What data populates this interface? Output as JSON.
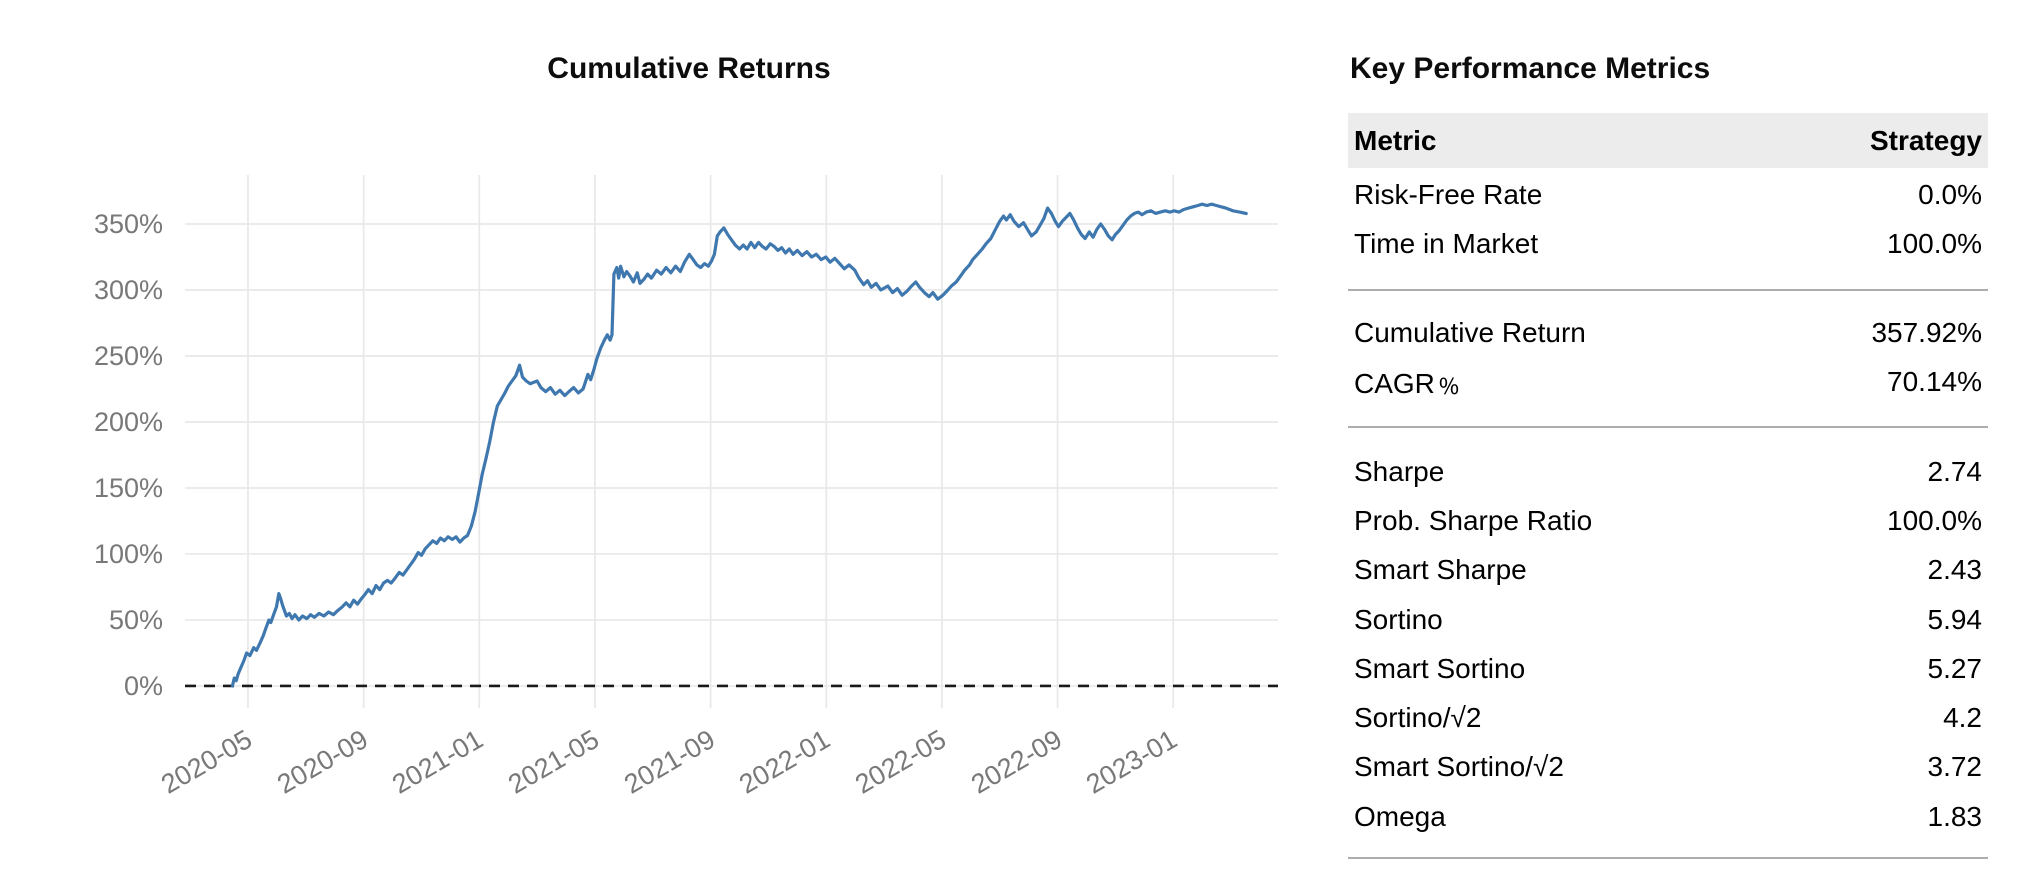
{
  "chart": {
    "title": "Cumulative Returns"
  },
  "chart_data": {
    "type": "line",
    "title": "Cumulative Returns",
    "x_tick_labels": [
      "2020-05",
      "2020-09",
      "2021-01",
      "2021-05",
      "2021-09",
      "2022-01",
      "2022-05",
      "2022-09",
      "2023-01"
    ],
    "y_tick_labels": [
      "0%",
      "50%",
      "100%",
      "150%",
      "200%",
      "250%",
      "300%",
      "350%"
    ],
    "y_ticks_pct": [
      0,
      50,
      100,
      150,
      200,
      250,
      300,
      350
    ],
    "x_domain": [
      "2020-02-26",
      "2023-04-20"
    ],
    "y_domain_pct": [
      -16.7,
      387.1
    ],
    "grid": true,
    "legend": "none",
    "zero_line_pct": 0,
    "series": [
      {
        "name": "Strategy",
        "color": "#3f77af",
        "points": [
          [
            "2020-04-15",
            0
          ],
          [
            "2020-04-17",
            6
          ],
          [
            "2020-04-19",
            4
          ],
          [
            "2020-04-21",
            9
          ],
          [
            "2020-04-24",
            14
          ],
          [
            "2020-04-27",
            19
          ],
          [
            "2020-04-30",
            25
          ],
          [
            "2020-05-03",
            23
          ],
          [
            "2020-05-07",
            29
          ],
          [
            "2020-05-10",
            27
          ],
          [
            "2020-05-14",
            33
          ],
          [
            "2020-05-17",
            38
          ],
          [
            "2020-05-20",
            44
          ],
          [
            "2020-05-23",
            50
          ],
          [
            "2020-05-25",
            48
          ],
          [
            "2020-05-28",
            54
          ],
          [
            "2020-05-31",
            60
          ],
          [
            "2020-06-03",
            70
          ],
          [
            "2020-06-05",
            66
          ],
          [
            "2020-06-07",
            61
          ],
          [
            "2020-06-09",
            57
          ],
          [
            "2020-06-11",
            53
          ],
          [
            "2020-06-14",
            55
          ],
          [
            "2020-06-17",
            51
          ],
          [
            "2020-06-20",
            54
          ],
          [
            "2020-06-24",
            50
          ],
          [
            "2020-06-28",
            53
          ],
          [
            "2020-07-02",
            51
          ],
          [
            "2020-07-06",
            54
          ],
          [
            "2020-07-10",
            52
          ],
          [
            "2020-07-15",
            55
          ],
          [
            "2020-07-20",
            53
          ],
          [
            "2020-07-25",
            56
          ],
          [
            "2020-07-30",
            54
          ],
          [
            "2020-08-04",
            57
          ],
          [
            "2020-08-09",
            60
          ],
          [
            "2020-08-13",
            63
          ],
          [
            "2020-08-17",
            60
          ],
          [
            "2020-08-21",
            65
          ],
          [
            "2020-08-25",
            62
          ],
          [
            "2020-08-29",
            66
          ],
          [
            "2020-09-02",
            69
          ],
          [
            "2020-09-06",
            73
          ],
          [
            "2020-09-10",
            70
          ],
          [
            "2020-09-14",
            76
          ],
          [
            "2020-09-18",
            73
          ],
          [
            "2020-09-22",
            78
          ],
          [
            "2020-09-26",
            80
          ],
          [
            "2020-09-30",
            78
          ],
          [
            "2020-10-04",
            82
          ],
          [
            "2020-10-08",
            86
          ],
          [
            "2020-10-12",
            84
          ],
          [
            "2020-10-16",
            88
          ],
          [
            "2020-10-20",
            92
          ],
          [
            "2020-10-24",
            96
          ],
          [
            "2020-10-28",
            101
          ],
          [
            "2020-11-01",
            99
          ],
          [
            "2020-11-05",
            104
          ],
          [
            "2020-11-09",
            107
          ],
          [
            "2020-11-13",
            110
          ],
          [
            "2020-11-17",
            108
          ],
          [
            "2020-11-21",
            112
          ],
          [
            "2020-11-25",
            110
          ],
          [
            "2020-11-29",
            113
          ],
          [
            "2020-12-03",
            111
          ],
          [
            "2020-12-07",
            113
          ],
          [
            "2020-12-11",
            109
          ],
          [
            "2020-12-15",
            112
          ],
          [
            "2020-12-19",
            114
          ],
          [
            "2020-12-23",
            121
          ],
          [
            "2020-12-27",
            132
          ],
          [
            "2020-12-31",
            147
          ],
          [
            "2021-01-04",
            160
          ],
          [
            "2021-01-08",
            172
          ],
          [
            "2021-01-12",
            185
          ],
          [
            "2021-01-16",
            200
          ],
          [
            "2021-01-20",
            212
          ],
          [
            "2021-01-24",
            217
          ],
          [
            "2021-01-28",
            222
          ],
          [
            "2021-02-01",
            227
          ],
          [
            "2021-02-05",
            231
          ],
          [
            "2021-02-09",
            235
          ],
          [
            "2021-02-13",
            243
          ],
          [
            "2021-02-16",
            234
          ],
          [
            "2021-02-20",
            231
          ],
          [
            "2021-02-24",
            229
          ],
          [
            "2021-03-01",
            231
          ],
          [
            "2021-03-05",
            226
          ],
          [
            "2021-03-10",
            223
          ],
          [
            "2021-03-15",
            226
          ],
          [
            "2021-03-20",
            221
          ],
          [
            "2021-03-25",
            224
          ],
          [
            "2021-03-30",
            220
          ],
          [
            "2021-04-04",
            223
          ],
          [
            "2021-04-09",
            226
          ],
          [
            "2021-04-14",
            222
          ],
          [
            "2021-04-19",
            225
          ],
          [
            "2021-04-24",
            236
          ],
          [
            "2021-04-27",
            232
          ],
          [
            "2021-04-30",
            239
          ],
          [
            "2021-05-03",
            248
          ],
          [
            "2021-05-07",
            256
          ],
          [
            "2021-05-11",
            262
          ],
          [
            "2021-05-14",
            266
          ],
          [
            "2021-05-17",
            262
          ],
          [
            "2021-05-19",
            266
          ],
          [
            "2021-05-21",
            312
          ],
          [
            "2021-05-24",
            317
          ],
          [
            "2021-05-26",
            309
          ],
          [
            "2021-05-28",
            318
          ],
          [
            "2021-06-01",
            310
          ],
          [
            "2021-06-04",
            314
          ],
          [
            "2021-06-08",
            310
          ],
          [
            "2021-06-11",
            306
          ],
          [
            "2021-06-15",
            313
          ],
          [
            "2021-06-18",
            305
          ],
          [
            "2021-06-22",
            308
          ],
          [
            "2021-06-26",
            312
          ],
          [
            "2021-06-30",
            309
          ],
          [
            "2021-07-05",
            315
          ],
          [
            "2021-07-10",
            312
          ],
          [
            "2021-07-15",
            317
          ],
          [
            "2021-07-20",
            313
          ],
          [
            "2021-07-25",
            318
          ],
          [
            "2021-07-30",
            314
          ],
          [
            "2021-08-04",
            321
          ],
          [
            "2021-08-09",
            327
          ],
          [
            "2021-08-13",
            323
          ],
          [
            "2021-08-17",
            319
          ],
          [
            "2021-08-21",
            317
          ],
          [
            "2021-08-25",
            320
          ],
          [
            "2021-08-29",
            318
          ],
          [
            "2021-09-02",
            322
          ],
          [
            "2021-09-05",
            327
          ],
          [
            "2021-09-08",
            341
          ],
          [
            "2021-09-11",
            344
          ],
          [
            "2021-09-15",
            347
          ],
          [
            "2021-09-19",
            342
          ],
          [
            "2021-09-23",
            338
          ],
          [
            "2021-09-27",
            334
          ],
          [
            "2021-10-01",
            331
          ],
          [
            "2021-10-05",
            334
          ],
          [
            "2021-10-09",
            331
          ],
          [
            "2021-10-13",
            336
          ],
          [
            "2021-10-17",
            332
          ],
          [
            "2021-10-21",
            336
          ],
          [
            "2021-10-25",
            333
          ],
          [
            "2021-10-29",
            331
          ],
          [
            "2021-11-03",
            335
          ],
          [
            "2021-11-07",
            333
          ],
          [
            "2021-11-11",
            330
          ],
          [
            "2021-11-15",
            332
          ],
          [
            "2021-11-19",
            328
          ],
          [
            "2021-11-23",
            331
          ],
          [
            "2021-11-27",
            327
          ],
          [
            "2021-12-01",
            330
          ],
          [
            "2021-12-06",
            326
          ],
          [
            "2021-12-11",
            329
          ],
          [
            "2021-12-16",
            325
          ],
          [
            "2021-12-21",
            327
          ],
          [
            "2021-12-26",
            323
          ],
          [
            "2021-12-31",
            325
          ],
          [
            "2022-01-05",
            321
          ],
          [
            "2022-01-10",
            324
          ],
          [
            "2022-01-15",
            320
          ],
          [
            "2022-01-20",
            316
          ],
          [
            "2022-01-25",
            319
          ],
          [
            "2022-01-31",
            315
          ],
          [
            "2022-02-05",
            309
          ],
          [
            "2022-02-10",
            304
          ],
          [
            "2022-02-14",
            307
          ],
          [
            "2022-02-18",
            302
          ],
          [
            "2022-02-23",
            305
          ],
          [
            "2022-02-28",
            300
          ],
          [
            "2022-03-05",
            303
          ],
          [
            "2022-03-10",
            298
          ],
          [
            "2022-03-15",
            301
          ],
          [
            "2022-03-20",
            296
          ],
          [
            "2022-03-25",
            299
          ],
          [
            "2022-03-30",
            303
          ],
          [
            "2022-04-04",
            306
          ],
          [
            "2022-04-08",
            302
          ],
          [
            "2022-04-13",
            298
          ],
          [
            "2022-04-18",
            295
          ],
          [
            "2022-04-22",
            298
          ],
          [
            "2022-04-27",
            293
          ],
          [
            "2022-05-02",
            296
          ],
          [
            "2022-05-06",
            299
          ],
          [
            "2022-05-11",
            303
          ],
          [
            "2022-05-16",
            306
          ],
          [
            "2022-05-20",
            310
          ],
          [
            "2022-05-25",
            315
          ],
          [
            "2022-05-30",
            319
          ],
          [
            "2022-06-03",
            323
          ],
          [
            "2022-06-08",
            327
          ],
          [
            "2022-06-13",
            331
          ],
          [
            "2022-06-17",
            335
          ],
          [
            "2022-06-22",
            339
          ],
          [
            "2022-06-27",
            346
          ],
          [
            "2022-07-01",
            352
          ],
          [
            "2022-07-05",
            356
          ],
          [
            "2022-07-08",
            353
          ],
          [
            "2022-07-12",
            357
          ],
          [
            "2022-07-16",
            352
          ],
          [
            "2022-07-21",
            348
          ],
          [
            "2022-07-26",
            351
          ],
          [
            "2022-07-31",
            345
          ],
          [
            "2022-08-04",
            341
          ],
          [
            "2022-08-09",
            344
          ],
          [
            "2022-08-13",
            349
          ],
          [
            "2022-08-17",
            354
          ],
          [
            "2022-08-21",
            362
          ],
          [
            "2022-08-25",
            358
          ],
          [
            "2022-08-29",
            352
          ],
          [
            "2022-09-02",
            348
          ],
          [
            "2022-09-06",
            352
          ],
          [
            "2022-09-10",
            355
          ],
          [
            "2022-09-14",
            358
          ],
          [
            "2022-09-18",
            353
          ],
          [
            "2022-09-22",
            347
          ],
          [
            "2022-09-26",
            342
          ],
          [
            "2022-09-30",
            339
          ],
          [
            "2022-10-04",
            344
          ],
          [
            "2022-10-08",
            340
          ],
          [
            "2022-10-12",
            346
          ],
          [
            "2022-10-16",
            350
          ],
          [
            "2022-10-20",
            346
          ],
          [
            "2022-10-24",
            341
          ],
          [
            "2022-10-28",
            338
          ],
          [
            "2022-11-01",
            342
          ],
          [
            "2022-11-05",
            345
          ],
          [
            "2022-11-09",
            349
          ],
          [
            "2022-11-13",
            353
          ],
          [
            "2022-11-17",
            356
          ],
          [
            "2022-11-21",
            358
          ],
          [
            "2022-11-25",
            359
          ],
          [
            "2022-11-29",
            357
          ],
          [
            "2022-12-03",
            359
          ],
          [
            "2022-12-08",
            360
          ],
          [
            "2022-12-13",
            358
          ],
          [
            "2022-12-18",
            359
          ],
          [
            "2022-12-23",
            360
          ],
          [
            "2022-12-28",
            359
          ],
          [
            "2023-01-02",
            360
          ],
          [
            "2023-01-07",
            359
          ],
          [
            "2023-01-12",
            361
          ],
          [
            "2023-01-17",
            362
          ],
          [
            "2023-01-22",
            363
          ],
          [
            "2023-01-27",
            364
          ],
          [
            "2023-02-01",
            365
          ],
          [
            "2023-02-06",
            364
          ],
          [
            "2023-02-11",
            365
          ],
          [
            "2023-02-16",
            364
          ],
          [
            "2023-02-21",
            363
          ],
          [
            "2023-02-26",
            362
          ],
          [
            "2023-03-03",
            360
          ],
          [
            "2023-03-10",
            359
          ],
          [
            "2023-03-17",
            357.92
          ]
        ]
      }
    ]
  },
  "metrics_panel": {
    "title": "Key Performance Metrics",
    "columns": [
      "Metric",
      "Strategy"
    ],
    "groups": [
      {
        "rows": [
          [
            "Risk-Free Rate",
            "0.0%"
          ],
          [
            "Time in Market",
            "100.0%"
          ]
        ]
      },
      {
        "rows": [
          [
            "Cumulative Return",
            "357.92%"
          ],
          [
            "CAGR﹪",
            "70.14%"
          ]
        ]
      },
      {
        "rows": [
          [
            "Sharpe",
            "2.74"
          ],
          [
            "Prob. Sharpe Ratio",
            "100.0%"
          ],
          [
            "Smart Sharpe",
            "2.43"
          ],
          [
            "Sortino",
            "5.94"
          ],
          [
            "Smart Sortino",
            "5.27"
          ],
          [
            "Sortino/√2",
            "4.2"
          ],
          [
            "Smart Sortino/√2",
            "3.72"
          ],
          [
            "Omega",
            "1.83"
          ]
        ]
      }
    ]
  },
  "colors": {
    "line": "#3f77af",
    "grid": "#e8e8e8",
    "zero_line": "#1a1a1a",
    "axis_label": "#787878",
    "header_bg": "#ececec",
    "divider": "#adadad",
    "text": "#000000",
    "background": "#ffffff"
  }
}
